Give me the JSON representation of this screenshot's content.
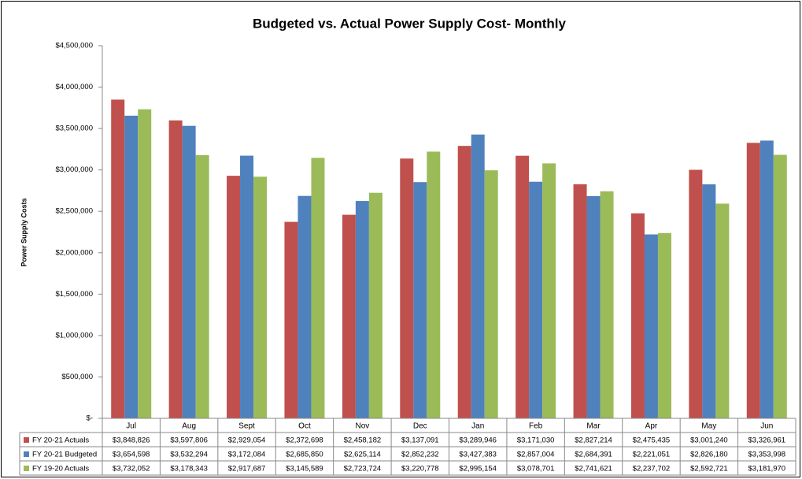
{
  "chart_data": {
    "type": "bar",
    "title": "Budgeted vs. Actual Power Supply Cost- Monthly",
    "y_label": "Power Supply Costs",
    "categories": [
      "Jul",
      "Aug",
      "Sept",
      "Oct",
      "Nov",
      "Dec",
      "Jan",
      "Feb",
      "Mar",
      "Apr",
      "May",
      "Jun"
    ],
    "series": [
      {
        "name": "FY 20-21 Actuals",
        "color": "#c0504d",
        "values": [
          3848826,
          3597806,
          2929054,
          2372698,
          2458182,
          3137091,
          3289946,
          3171030,
          2827214,
          2475435,
          3001240,
          3326961
        ],
        "value_labels": [
          "$3,848,826",
          "$3,597,806",
          "$2,929,054",
          "$2,372,698",
          "$2,458,182",
          "$3,137,091",
          "$3,289,946",
          "$3,171,030",
          "$2,827,214",
          "$2,475,435",
          "$3,001,240",
          "$3,326,961"
        ]
      },
      {
        "name": "FY 20-21 Budgeted",
        "color": "#4f81bd",
        "values": [
          3654598,
          3532294,
          3172084,
          2685850,
          2625114,
          2852232,
          3427383,
          2857004,
          2684391,
          2221051,
          2826180,
          3353998
        ],
        "value_labels": [
          "$3,654,598",
          "$3,532,294",
          "$3,172,084",
          "$2,685,850",
          "$2,625,114",
          "$2,852,232",
          "$3,427,383",
          "$2,857,004",
          "$2,684,391",
          "$2,221,051",
          "$2,826,180",
          "$3,353,998"
        ]
      },
      {
        "name": "FY 19-20 Actuals",
        "color": "#9bbb59",
        "values": [
          3732052,
          3178343,
          2917687,
          3145589,
          2723724,
          3220778,
          2995154,
          3078701,
          2741621,
          2237702,
          2592721,
          3181970
        ],
        "value_labels": [
          "$3,732,052",
          "$3,178,343",
          "$2,917,687",
          "$3,145,589",
          "$2,723,724",
          "$3,220,778",
          "$2,995,154",
          "$3,078,701",
          "$2,741,621",
          "$2,237,702",
          "$2,592,721",
          "$3,181,970"
        ]
      }
    ],
    "ylim": [
      0,
      4500000
    ],
    "yticks": [
      {
        "value": 0,
        "label": "$-"
      },
      {
        "value": 500000,
        "label": "$500,000"
      },
      {
        "value": 1000000,
        "label": "$1,000,000"
      },
      {
        "value": 1500000,
        "label": "$1,500,000"
      },
      {
        "value": 2000000,
        "label": "$2,000,000"
      },
      {
        "value": 2500000,
        "label": "$2,500,000"
      },
      {
        "value": 3000000,
        "label": "$3,000,000"
      },
      {
        "value": 3500000,
        "label": "$3,500,000"
      },
      {
        "value": 4000000,
        "label": "$4,000,000"
      },
      {
        "value": 4500000,
        "label": "$4,500,000"
      }
    ],
    "grid": false
  }
}
